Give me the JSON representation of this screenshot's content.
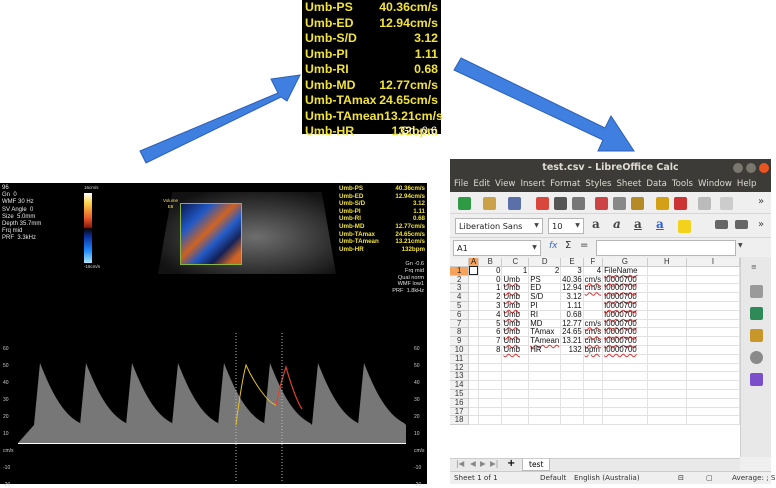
{
  "zoom_panel": {
    "rows": [
      {
        "label": "Umb-PS",
        "value": "40.36cm/s"
      },
      {
        "label": "Umb-ED",
        "value": "12.94cm/s"
      },
      {
        "label": "Umb-S/D",
        "value": "3.12"
      },
      {
        "label": "Umb-PI",
        "value": "1.11"
      },
      {
        "label": "Umb-RI",
        "value": "0.68"
      },
      {
        "label": "Umb-MD",
        "value": "12.77cm/s"
      },
      {
        "label": "Umb-TAmax",
        "value": "24.65cm/s"
      },
      {
        "label": "Umb-TAmean",
        "value": "13.21cm/s"
      },
      {
        "label": "Umb-HR",
        "value": "132bpm"
      }
    ],
    "gn": "Gn -0.6"
  },
  "ultrasound": {
    "params": [
      "96",
      "Gn  0",
      "WMF 30 Hz",
      "SV Angle  0",
      "Size  5.0mm",
      "Depth 35.7mm",
      "Frq mid",
      "PRF  3.3kHz"
    ],
    "scale_top": "16cm/s",
    "scale_bottom": "-16cm/s",
    "volume_label": [
      "Volume",
      "E8"
    ],
    "measurements": [
      {
        "label": "Umb-PS",
        "value": "40.36cm/s"
      },
      {
        "label": "Umb-ED",
        "value": "12.94cm/s"
      },
      {
        "label": "Umb-S/D",
        "value": "3.12"
      },
      {
        "label": "Umb-PI",
        "value": "1.11"
      },
      {
        "label": "Umb-RI",
        "value": "0.68"
      },
      {
        "label": "Umb-MD",
        "value": "12.77cm/s"
      },
      {
        "label": "Umb-TAmax",
        "value": "24.65cm/s"
      },
      {
        "label": "Umb-TAmean",
        "value": "13.21cm/s"
      },
      {
        "label": "Umb-HR",
        "value": "132bpm"
      }
    ],
    "extra": [
      "Gn -0.6",
      "Frq mid",
      "Qual norm",
      "WMF low1",
      "PRF  1.8kHz"
    ],
    "axis_ticks": [
      "60",
      "50",
      "40",
      "30",
      "20",
      "10",
      "cm/s",
      "-10",
      "-20"
    ],
    "axis_unit": "cm/s"
  },
  "libreoffice": {
    "title": "test.csv - LibreOffice Calc",
    "menu": [
      "File",
      "Edit",
      "View",
      "Insert",
      "Format",
      "Styles",
      "Sheet",
      "Data",
      "Tools",
      "Window",
      "Help"
    ],
    "font_name": "Liberation Sans",
    "font_size": "10",
    "name_box": "A1",
    "col_headers": [
      "A",
      "B",
      "C",
      "D",
      "E",
      "F",
      "G",
      "H",
      "I"
    ],
    "rows": [
      {
        "n": "1",
        "cells": [
          "",
          "0",
          "1",
          "2",
          "3",
          "4",
          "FileName",
          "",
          ""
        ]
      },
      {
        "n": "2",
        "cells": [
          "",
          "0",
          "Umb",
          "PS",
          "40.36",
          "cm/s",
          "I0000700",
          "",
          ""
        ]
      },
      {
        "n": "3",
        "cells": [
          "",
          "1",
          "Umb",
          "ED",
          "12.94",
          "cm/s",
          "I0000700",
          "",
          ""
        ]
      },
      {
        "n": "4",
        "cells": [
          "",
          "2",
          "Umb",
          "S/D",
          "3.12",
          "",
          "I0000700",
          "",
          ""
        ]
      },
      {
        "n": "5",
        "cells": [
          "",
          "3",
          "Umb",
          "PI",
          "1.11",
          "",
          "I0000700",
          "",
          ""
        ]
      },
      {
        "n": "6",
        "cells": [
          "",
          "4",
          "Umb",
          "RI",
          "0.68",
          "",
          "I0000700",
          "",
          ""
        ]
      },
      {
        "n": "7",
        "cells": [
          "",
          "5",
          "Umb",
          "MD",
          "12.77",
          "cm/s",
          "I0000700",
          "",
          ""
        ]
      },
      {
        "n": "8",
        "cells": [
          "",
          "6",
          "Umb",
          "TAmax",
          "24.65",
          "cm/s",
          "I0000700",
          "",
          ""
        ]
      },
      {
        "n": "9",
        "cells": [
          "",
          "7",
          "Umb",
          "TAmean",
          "13.21",
          "cm/s",
          "I0000700",
          "",
          ""
        ]
      },
      {
        "n": "10",
        "cells": [
          "",
          "8",
          "Umb",
          "HR",
          "132",
          "bpm",
          "I0000700",
          "",
          ""
        ]
      },
      {
        "n": "11",
        "cells": [
          "",
          "",
          "",
          "",
          "",
          "",
          "",
          "",
          ""
        ]
      },
      {
        "n": "12",
        "cells": [
          "",
          "",
          "",
          "",
          "",
          "",
          "",
          "",
          ""
        ]
      },
      {
        "n": "13",
        "cells": [
          "",
          "",
          "",
          "",
          "",
          "",
          "",
          "",
          ""
        ]
      },
      {
        "n": "14",
        "cells": [
          "",
          "",
          "",
          "",
          "",
          "",
          "",
          "",
          ""
        ]
      },
      {
        "n": "15",
        "cells": [
          "",
          "",
          "",
          "",
          "",
          "",
          "",
          "",
          ""
        ]
      },
      {
        "n": "16",
        "cells": [
          "",
          "",
          "",
          "",
          "",
          "",
          "",
          "",
          ""
        ]
      },
      {
        "n": "17",
        "cells": [
          "",
          "",
          "",
          "",
          "",
          "",
          "",
          "",
          ""
        ]
      },
      {
        "n": "18",
        "cells": [
          "",
          "",
          "",
          "",
          "",
          "",
          "",
          "",
          ""
        ]
      }
    ],
    "sheet_tab": "test",
    "status": {
      "sheet": "Sheet 1 of 1",
      "style": "Default",
      "language": "English (Australia)",
      "summary": "Average: ; S"
    },
    "colors": {
      "titlebar": "#3c3b37",
      "selected_header": "#f7a25c"
    }
  }
}
